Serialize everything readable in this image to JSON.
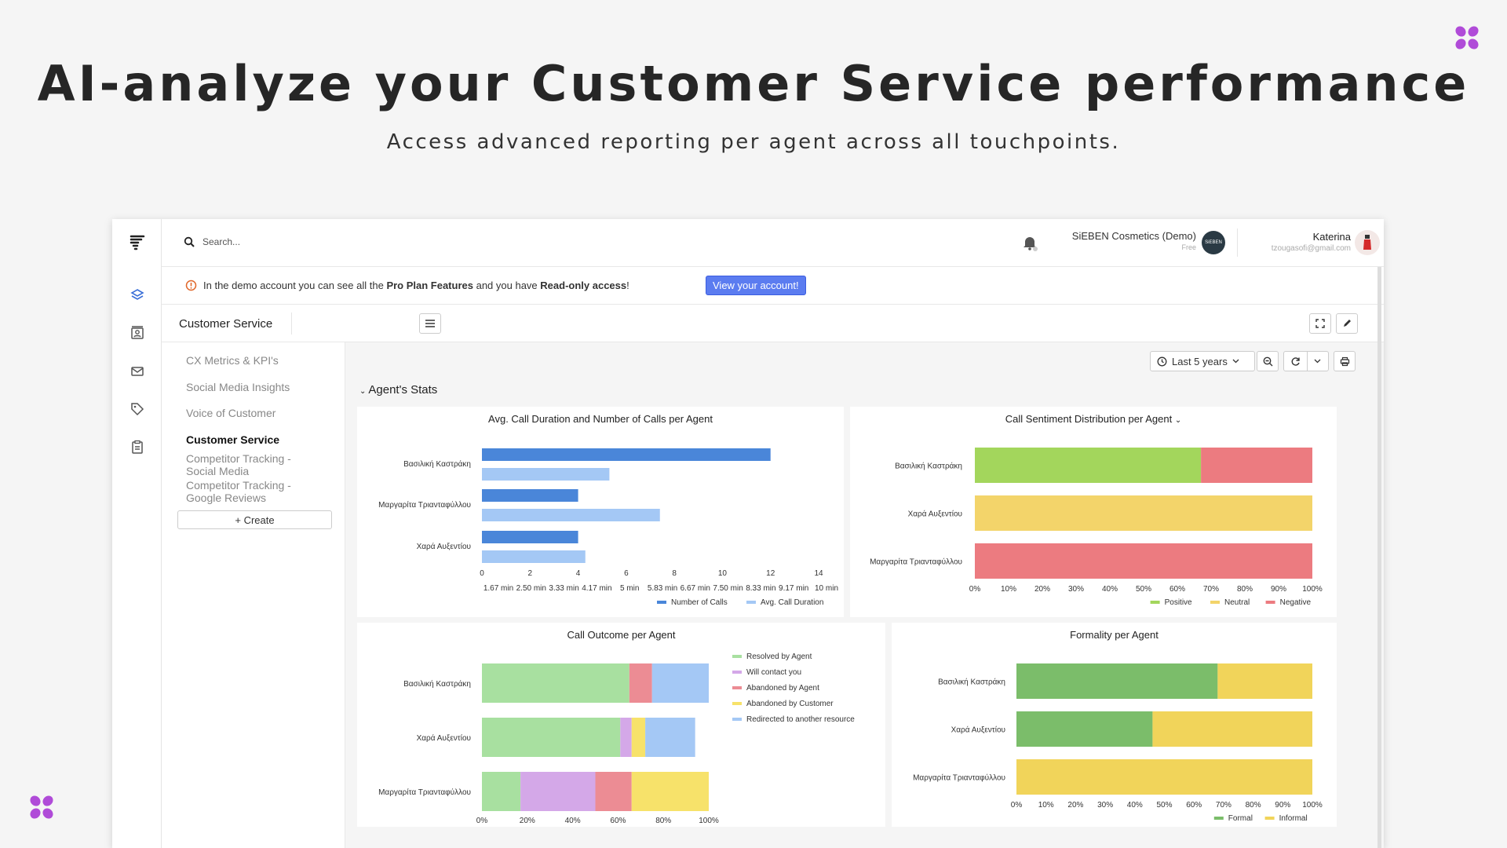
{
  "hero": {
    "title": "AI-analyze your Customer Service performance",
    "subtitle": "Access advanced reporting per agent across all touchpoints."
  },
  "topbar": {
    "search_placeholder": "Search...",
    "org_name": "SiEBEN Cosmetics (Demo)",
    "org_plan": "Free",
    "org_avatar_text": "SiEBEN",
    "user_name": "Katerina",
    "user_email": "tzougasofi@gmail.com"
  },
  "banner": {
    "text_1": "In the demo account you can see all the ",
    "text_bold_1": "Pro Plan Features",
    "text_2": " and you have ",
    "text_bold_2": "Read-only access",
    "text_3": "!",
    "button": "View your account!"
  },
  "page": {
    "title": "Customer Service"
  },
  "sidebar": {
    "items": [
      {
        "label": "CX Metrics & KPI's"
      },
      {
        "label": "Social Media Insights"
      },
      {
        "label": "Voice of Customer"
      },
      {
        "label": "Customer Service"
      },
      {
        "label": "Competitor Tracking - Social Media"
      },
      {
        "label": "Competitor Tracking - Google Reviews"
      }
    ],
    "create_label": "+ Create"
  },
  "toolbar": {
    "date_range": "Last 5 years"
  },
  "section": {
    "title": "Agent's Stats"
  },
  "chart_data": [
    {
      "type": "bar",
      "title": "Avg. Call Duration and Number of Calls per Agent",
      "categories": [
        "Βασιλική Καστράκη",
        "Μαργαρίτα Τριανταφύλλου",
        "Χαρά Αυξεντίου"
      ],
      "series": [
        {
          "name": "Number of Calls",
          "values": [
            12,
            4,
            4
          ],
          "color": "#4a86d9"
        },
        {
          "name": "Avg. Call Duration",
          "values": [
            5.3,
            7.4,
            4.3
          ],
          "color": "#a4c8f5"
        }
      ],
      "xlim": [
        0,
        14
      ],
      "xticks": [
        "0",
        "2",
        "4",
        "6",
        "8",
        "10",
        "12",
        "14"
      ],
      "xticks2": [
        "1.67 min",
        "2.50 min",
        "3.33 min",
        "4.17 min",
        "5 min",
        "5.83 min",
        "6.67 min",
        "7.50 min",
        "8.33 min",
        "9.17 min",
        "10 min"
      ],
      "legend": "bottom-right"
    },
    {
      "type": "bar",
      "stacked": true,
      "title": "Call Sentiment Distribution per Agent",
      "categories": [
        "Βασιλική Καστράκη",
        "Χαρά Αυξεντίου",
        "Μαργαρίτα Τριανταφύλλου"
      ],
      "series": [
        {
          "name": "Positive",
          "values": [
            67,
            0,
            0
          ],
          "color": "#a3d65c"
        },
        {
          "name": "Neutral",
          "values": [
            0,
            100,
            0
          ],
          "color": "#f3d46a"
        },
        {
          "name": "Negative",
          "values": [
            33,
            0,
            100
          ],
          "color": "#ec7b80"
        }
      ],
      "xticks": [
        "0%",
        "10%",
        "20%",
        "30%",
        "40%",
        "50%",
        "60%",
        "70%",
        "80%",
        "90%",
        "100%"
      ],
      "legend": "bottom-right"
    },
    {
      "type": "bar",
      "stacked": true,
      "title": "Call Outcome per Agent",
      "categories": [
        "Βασιλική Καστράκη",
        "Χαρά Αυξεντίου",
        "Μαργαρίτα Τριανταφύλλου"
      ],
      "series": [
        {
          "name": "Resolved by Agent",
          "values": [
            65,
            61,
            17
          ],
          "color": "#a8e0a0"
        },
        {
          "name": "Will contact you",
          "values": [
            0,
            5,
            33
          ],
          "color": "#d4a8e8"
        },
        {
          "name": "Abandoned by Agent",
          "values": [
            10,
            0,
            16
          ],
          "color": "#ec8c94"
        },
        {
          "name": "Abandoned by Customer",
          "values": [
            0,
            6,
            34
          ],
          "color": "#f7e26a"
        },
        {
          "name": "Redirected to another resource",
          "values": [
            25,
            22,
            0
          ],
          "color": "#a4c8f5"
        }
      ],
      "xticks": [
        "0%",
        "20%",
        "40%",
        "60%",
        "80%",
        "100%"
      ],
      "legend": "right"
    },
    {
      "type": "bar",
      "stacked": true,
      "title": "Formality per Agent",
      "categories": [
        "Βασιλική Καστράκη",
        "Χαρά Αυξεντίου",
        "Μαργαρίτα Τριανταφύλλου"
      ],
      "series": [
        {
          "name": "Formal",
          "values": [
            68,
            46,
            0
          ],
          "color": "#7bbd6a"
        },
        {
          "name": "Informal",
          "values": [
            32,
            54,
            100
          ],
          "color": "#f1d45a"
        }
      ],
      "xticks": [
        "0%",
        "10%",
        "20%",
        "30%",
        "40%",
        "50%",
        "60%",
        "70%",
        "80%",
        "90%",
        "100%"
      ],
      "legend": "bottom-right"
    }
  ]
}
